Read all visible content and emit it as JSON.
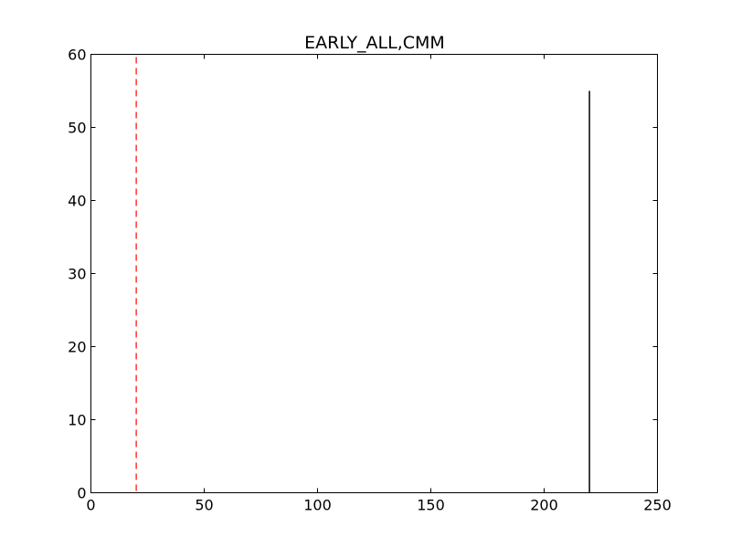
{
  "chart_data": {
    "type": "bar",
    "title": "EARLY_ALL,CMM",
    "xlabel": "",
    "ylabel": "",
    "xlim": [
      0,
      250
    ],
    "ylim": [
      0,
      60
    ],
    "xticks": [
      0,
      50,
      100,
      150,
      200,
      250
    ],
    "yticks": [
      0,
      10,
      20,
      30,
      40,
      50,
      60
    ],
    "grid": false,
    "bars": [
      {
        "x": 220,
        "value": 55,
        "color": "#000000"
      }
    ],
    "reference_lines": [
      {
        "x": 20,
        "style": "dashed",
        "color": "#ff0000"
      }
    ]
  }
}
